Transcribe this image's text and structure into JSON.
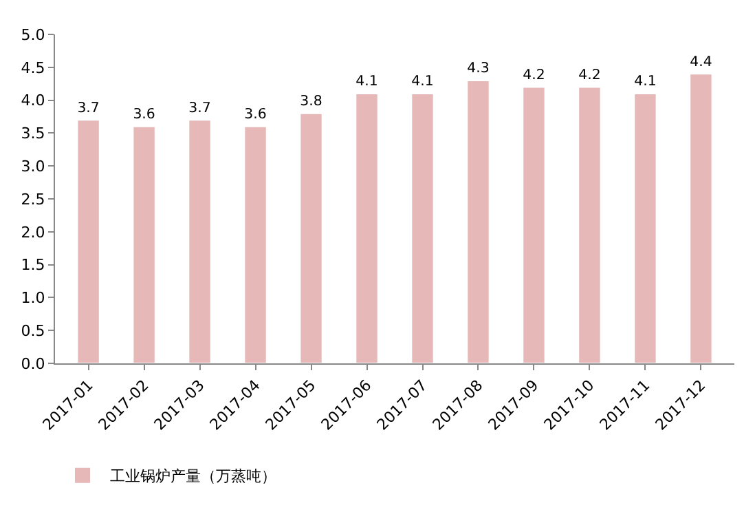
{
  "chart_data": {
    "type": "bar",
    "categories": [
      "2017-01",
      "2017-02",
      "2017-03",
      "2017-04",
      "2017-05",
      "2017-06",
      "2017-07",
      "2017-08",
      "2017-09",
      "2017-10",
      "2017-11",
      "2017-12"
    ],
    "series": [
      {
        "name": "工业锅炉产量（万蒸吨）",
        "color": "#e6b8b7",
        "values": [
          3.7,
          3.6,
          3.7,
          3.6,
          3.8,
          4.1,
          4.1,
          4.3,
          4.2,
          4.2,
          4.1,
          4.4
        ]
      }
    ],
    "ylim": [
      0,
      5
    ],
    "yticks": [
      {
        "value": 0,
        "label": "0.0"
      },
      0.5,
      {
        "value": 1,
        "label": "1.0"
      },
      1.5,
      {
        "value": 2,
        "label": "2.0"
      },
      2.5,
      {
        "value": 3,
        "label": "3.0"
      },
      3.5,
      {
        "value": 4,
        "label": "4.0"
      },
      4.5,
      {
        "value": 5,
        "label": "5.0"
      }
    ],
    "data_labels": true,
    "grid": false,
    "legend": "bottom"
  }
}
